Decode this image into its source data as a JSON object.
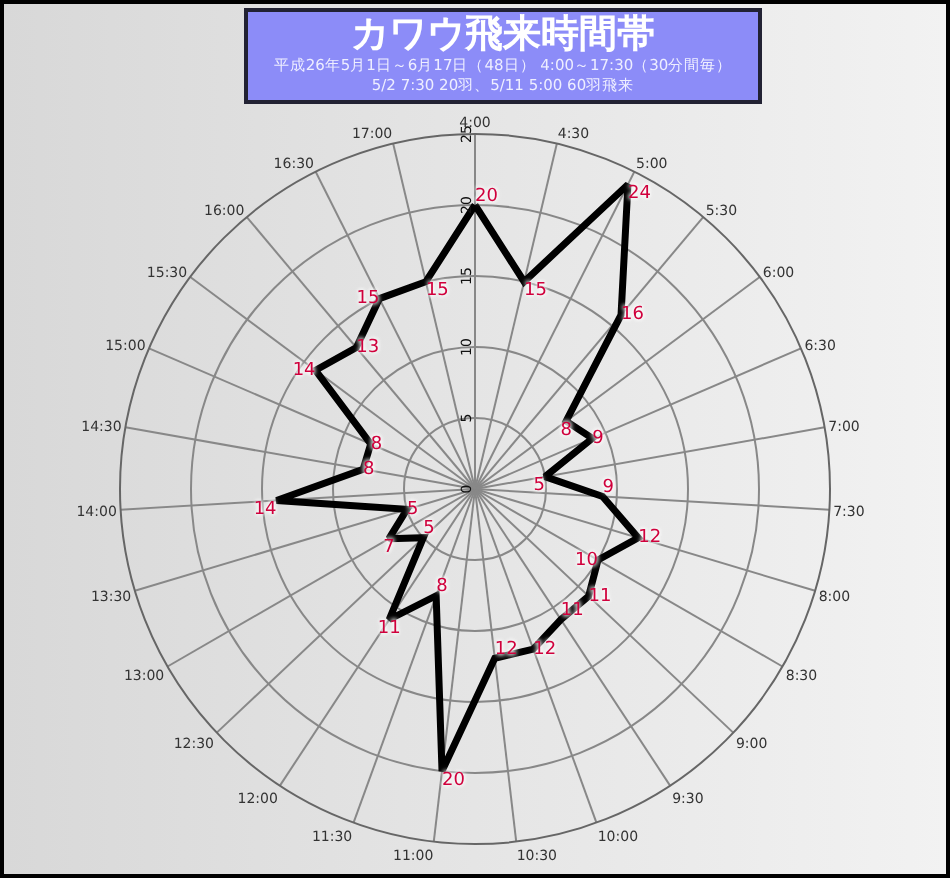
{
  "chart_data": {
    "type": "radar",
    "title": "カワウ飛来時間帯",
    "subtitle": "平成26年5月1日～6月17日（48日） 4:00～17:30（30分間毎）\n5/2 7:30 20羽、5/11 5:00 60羽飛来",
    "categories": [
      "4:00",
      "4:30",
      "5:00",
      "5:30",
      "6:00",
      "6:30",
      "7:00",
      "7:30",
      "8:00",
      "8:30",
      "9:00",
      "9:30",
      "10:00",
      "10:30",
      "11:00",
      "11:30",
      "12:00",
      "12:30",
      "13:00",
      "13:30",
      "14:00",
      "14:30",
      "15:00",
      "15:30",
      "16:00",
      "16:30",
      "17:00"
    ],
    "series": [
      {
        "color": "#000000",
        "values": [
          20,
          15,
          24,
          16,
          8,
          9,
          5,
          9,
          12,
          10,
          11,
          11,
          12,
          12,
          20,
          8,
          11,
          5,
          7,
          5,
          14,
          8,
          8,
          14,
          13,
          15,
          15
        ]
      }
    ],
    "ylim": [
      0,
      25
    ],
    "yticks": [
      0,
      5,
      10,
      15,
      20,
      25
    ],
    "grid": true,
    "marker": "none",
    "line_style": "solid",
    "data_labels": true
  }
}
